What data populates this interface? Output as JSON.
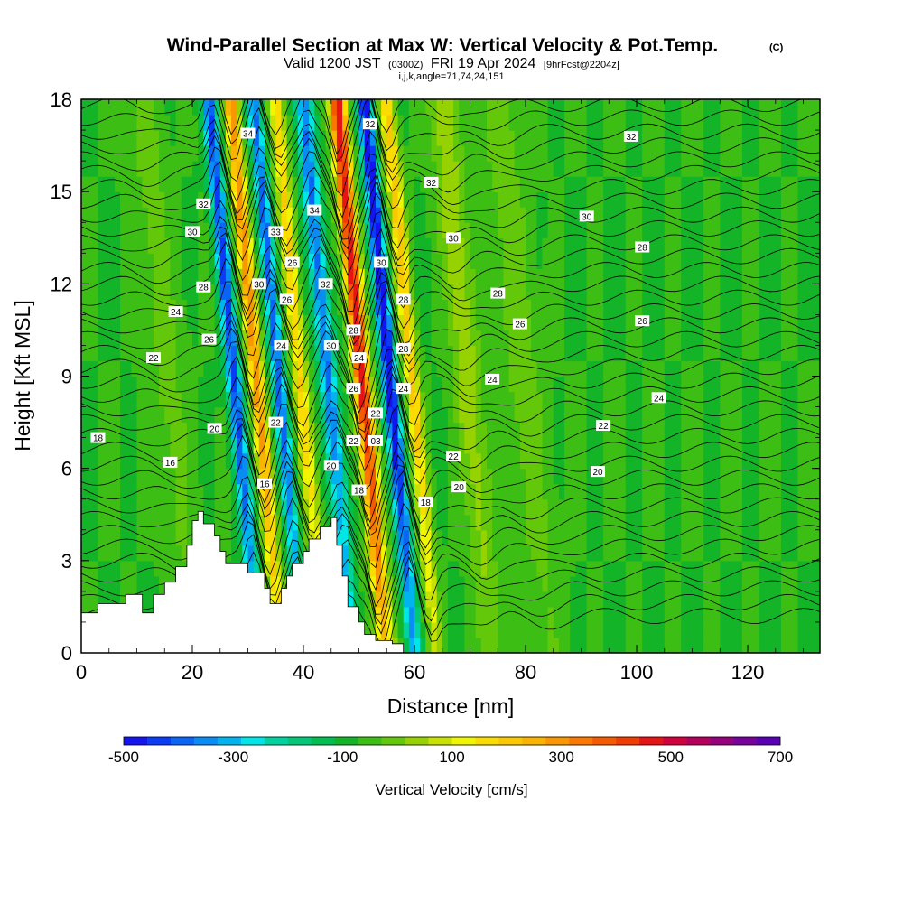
{
  "title": {
    "main": "Wind-Parallel Section at Max W: Vertical Velocity & Pot.Temp.",
    "units": "(C)",
    "valid_prefix": "Valid 1200 JST",
    "valid_utc": "(0300Z)",
    "valid_date": "FRI 19 Apr 2024",
    "forecast": "[9hrFcst@2204z]",
    "indices": "i,j,k,angle=71,74,24,151"
  },
  "colors": {
    "bands": [
      "#1414f0",
      "#0a3cf5",
      "#0a64f5",
      "#0a8cf5",
      "#00b4f0",
      "#00e6e6",
      "#00d2a0",
      "#00c878",
      "#00be50",
      "#14b428",
      "#3cbe14",
      "#64c80a",
      "#96d200",
      "#c8e100",
      "#f0f500",
      "#fadc00",
      "#fac800",
      "#fab400",
      "#fa9600",
      "#fa7800",
      "#f55a00",
      "#f03c00",
      "#e61414",
      "#d2003c",
      "#b4005a",
      "#96007d",
      "#78009b",
      "#5a00b4"
    ],
    "terrain": "#ffffff",
    "contour": "#000000"
  },
  "chart_data": {
    "type": "heatmap",
    "xlabel": "Distance [nm]",
    "ylabel": "Height [Kft MSL]",
    "xlim": [
      0,
      133
    ],
    "ylim": [
      0,
      18
    ],
    "x_ticks": [
      0,
      20,
      40,
      60,
      80,
      100,
      120
    ],
    "y_ticks": [
      0,
      3,
      6,
      9,
      12,
      15,
      18
    ],
    "colorbar": {
      "title": "Vertical Velocity [cm/s]",
      "range": [
        -500,
        700
      ],
      "step": 50,
      "tick_values": [
        -500,
        -300,
        -100,
        100,
        300,
        500,
        700
      ],
      "tick_labels": [
        "-500",
        "-300",
        "-100",
        "100",
        "300",
        "500",
        "700"
      ]
    },
    "velocity_features": [
      {
        "x": 23,
        "w": 1.3,
        "peak": -420
      },
      {
        "x": 27,
        "w": 1.3,
        "peak": 430
      },
      {
        "x": 31,
        "w": 1.2,
        "peak": -380
      },
      {
        "x": 35,
        "w": 1.3,
        "peak": 300
      },
      {
        "x": 40,
        "w": 1.5,
        "peak": -360
      },
      {
        "x": 46,
        "w": 1.5,
        "peak": 640
      },
      {
        "x": 51,
        "w": 1.3,
        "peak": -520
      },
      {
        "x": 55,
        "w": 1.3,
        "peak": 320
      },
      {
        "x": 65,
        "w": 2.5,
        "peak": 140
      },
      {
        "x": 75,
        "w": 3.5,
        "peak": 80
      },
      {
        "x": 11,
        "w": 3.0,
        "peak": 70
      }
    ],
    "terrain": [
      [
        0,
        1.3
      ],
      [
        3,
        1.3
      ],
      [
        3,
        1.6
      ],
      [
        8,
        1.6
      ],
      [
        8,
        1.9
      ],
      [
        11,
        1.9
      ],
      [
        11,
        1.3
      ],
      [
        13,
        1.3
      ],
      [
        13,
        1.9
      ],
      [
        15,
        1.9
      ],
      [
        15,
        2.3
      ],
      [
        17,
        2.3
      ],
      [
        17,
        2.8
      ],
      [
        19,
        2.8
      ],
      [
        19,
        3.5
      ],
      [
        20,
        3.5
      ],
      [
        20,
        4.3
      ],
      [
        21,
        4.3
      ],
      [
        21,
        4.6
      ],
      [
        22,
        4.6
      ],
      [
        22,
        4.2
      ],
      [
        24,
        4.2
      ],
      [
        24,
        3.8
      ],
      [
        25,
        3.8
      ],
      [
        25,
        3.3
      ],
      [
        26,
        3.3
      ],
      [
        26,
        2.9
      ],
      [
        30,
        2.9
      ],
      [
        30,
        2.6
      ],
      [
        33,
        2.6
      ],
      [
        33,
        2.1
      ],
      [
        34,
        2.1
      ],
      [
        34,
        1.6
      ],
      [
        36,
        1.6
      ],
      [
        36,
        2.1
      ],
      [
        37,
        2.1
      ],
      [
        37,
        2.5
      ],
      [
        38,
        2.5
      ],
      [
        38,
        2.9
      ],
      [
        40,
        2.9
      ],
      [
        40,
        3.3
      ],
      [
        41,
        3.3
      ],
      [
        41,
        3.7
      ],
      [
        43,
        3.7
      ],
      [
        43,
        4.1
      ],
      [
        45,
        4.1
      ],
      [
        45,
        4.4
      ],
      [
        46,
        4.4
      ],
      [
        46,
        3.5
      ],
      [
        47,
        3.5
      ],
      [
        47,
        2.5
      ],
      [
        48,
        2.5
      ],
      [
        48,
        1.5
      ],
      [
        50,
        1.5
      ],
      [
        50,
        1.0
      ],
      [
        51,
        1.0
      ],
      [
        51,
        0.6
      ],
      [
        53,
        0.6
      ],
      [
        53,
        0.4
      ],
      [
        56,
        0.4
      ],
      [
        56,
        0.3
      ],
      [
        58,
        0.3
      ]
    ],
    "contour_labels": [
      {
        "text": "18",
        "x": 3,
        "y": 7.0
      },
      {
        "text": "16",
        "x": 16,
        "y": 6.2
      },
      {
        "text": "16",
        "x": 33,
        "y": 5.5
      },
      {
        "text": "20",
        "x": 24,
        "y": 7.3
      },
      {
        "text": "22",
        "x": 13,
        "y": 9.6
      },
      {
        "text": "24",
        "x": 17,
        "y": 11.1
      },
      {
        "text": "26",
        "x": 23,
        "y": 10.2
      },
      {
        "text": "28",
        "x": 22,
        "y": 11.9
      },
      {
        "text": "30",
        "x": 20,
        "y": 13.7
      },
      {
        "text": "32",
        "x": 22,
        "y": 14.6
      },
      {
        "text": "34",
        "x": 30,
        "y": 16.9
      },
      {
        "text": "33",
        "x": 35,
        "y": 13.7
      },
      {
        "text": "30",
        "x": 32,
        "y": 12.0
      },
      {
        "text": "26",
        "x": 38,
        "y": 12.7
      },
      {
        "text": "26",
        "x": 37,
        "y": 11.5
      },
      {
        "text": "24",
        "x": 36,
        "y": 10.0
      },
      {
        "text": "22",
        "x": 35,
        "y": 7.5
      },
      {
        "text": "34",
        "x": 42,
        "y": 14.4
      },
      {
        "text": "32",
        "x": 44,
        "y": 12.0
      },
      {
        "text": "30",
        "x": 45,
        "y": 10.0
      },
      {
        "text": "20",
        "x": 45,
        "y": 6.1
      },
      {
        "text": "28",
        "x": 49,
        "y": 10.5
      },
      {
        "text": "24",
        "x": 50,
        "y": 9.6
      },
      {
        "text": "26",
        "x": 49,
        "y": 8.6
      },
      {
        "text": "22",
        "x": 49,
        "y": 6.9
      },
      {
        "text": "18",
        "x": 50,
        "y": 5.3
      },
      {
        "text": "32",
        "x": 52,
        "y": 17.2
      },
      {
        "text": "30",
        "x": 54,
        "y": 12.7
      },
      {
        "text": "22",
        "x": 53,
        "y": 7.8
      },
      {
        "text": "03",
        "x": 53,
        "y": 6.9
      },
      {
        "text": "28",
        "x": 58,
        "y": 11.5
      },
      {
        "text": "28",
        "x": 58,
        "y": 9.9
      },
      {
        "text": "24",
        "x": 58,
        "y": 8.6
      },
      {
        "text": "32",
        "x": 63,
        "y": 15.3
      },
      {
        "text": "30",
        "x": 67,
        "y": 13.5
      },
      {
        "text": "28",
        "x": 75,
        "y": 11.7
      },
      {
        "text": "26",
        "x": 79,
        "y": 10.7
      },
      {
        "text": "24",
        "x": 74,
        "y": 8.9
      },
      {
        "text": "22",
        "x": 67,
        "y": 6.4
      },
      {
        "text": "20",
        "x": 68,
        "y": 5.4
      },
      {
        "text": "18",
        "x": 62,
        "y": 4.9
      },
      {
        "text": "32",
        "x": 99,
        "y": 16.8
      },
      {
        "text": "30",
        "x": 91,
        "y": 14.2
      },
      {
        "text": "28",
        "x": 101,
        "y": 13.2
      },
      {
        "text": "26",
        "x": 101,
        "y": 10.8
      },
      {
        "text": "24",
        "x": 104,
        "y": 8.3
      },
      {
        "text": "22",
        "x": 94,
        "y": 7.4
      },
      {
        "text": "20",
        "x": 93,
        "y": 5.9
      }
    ]
  }
}
